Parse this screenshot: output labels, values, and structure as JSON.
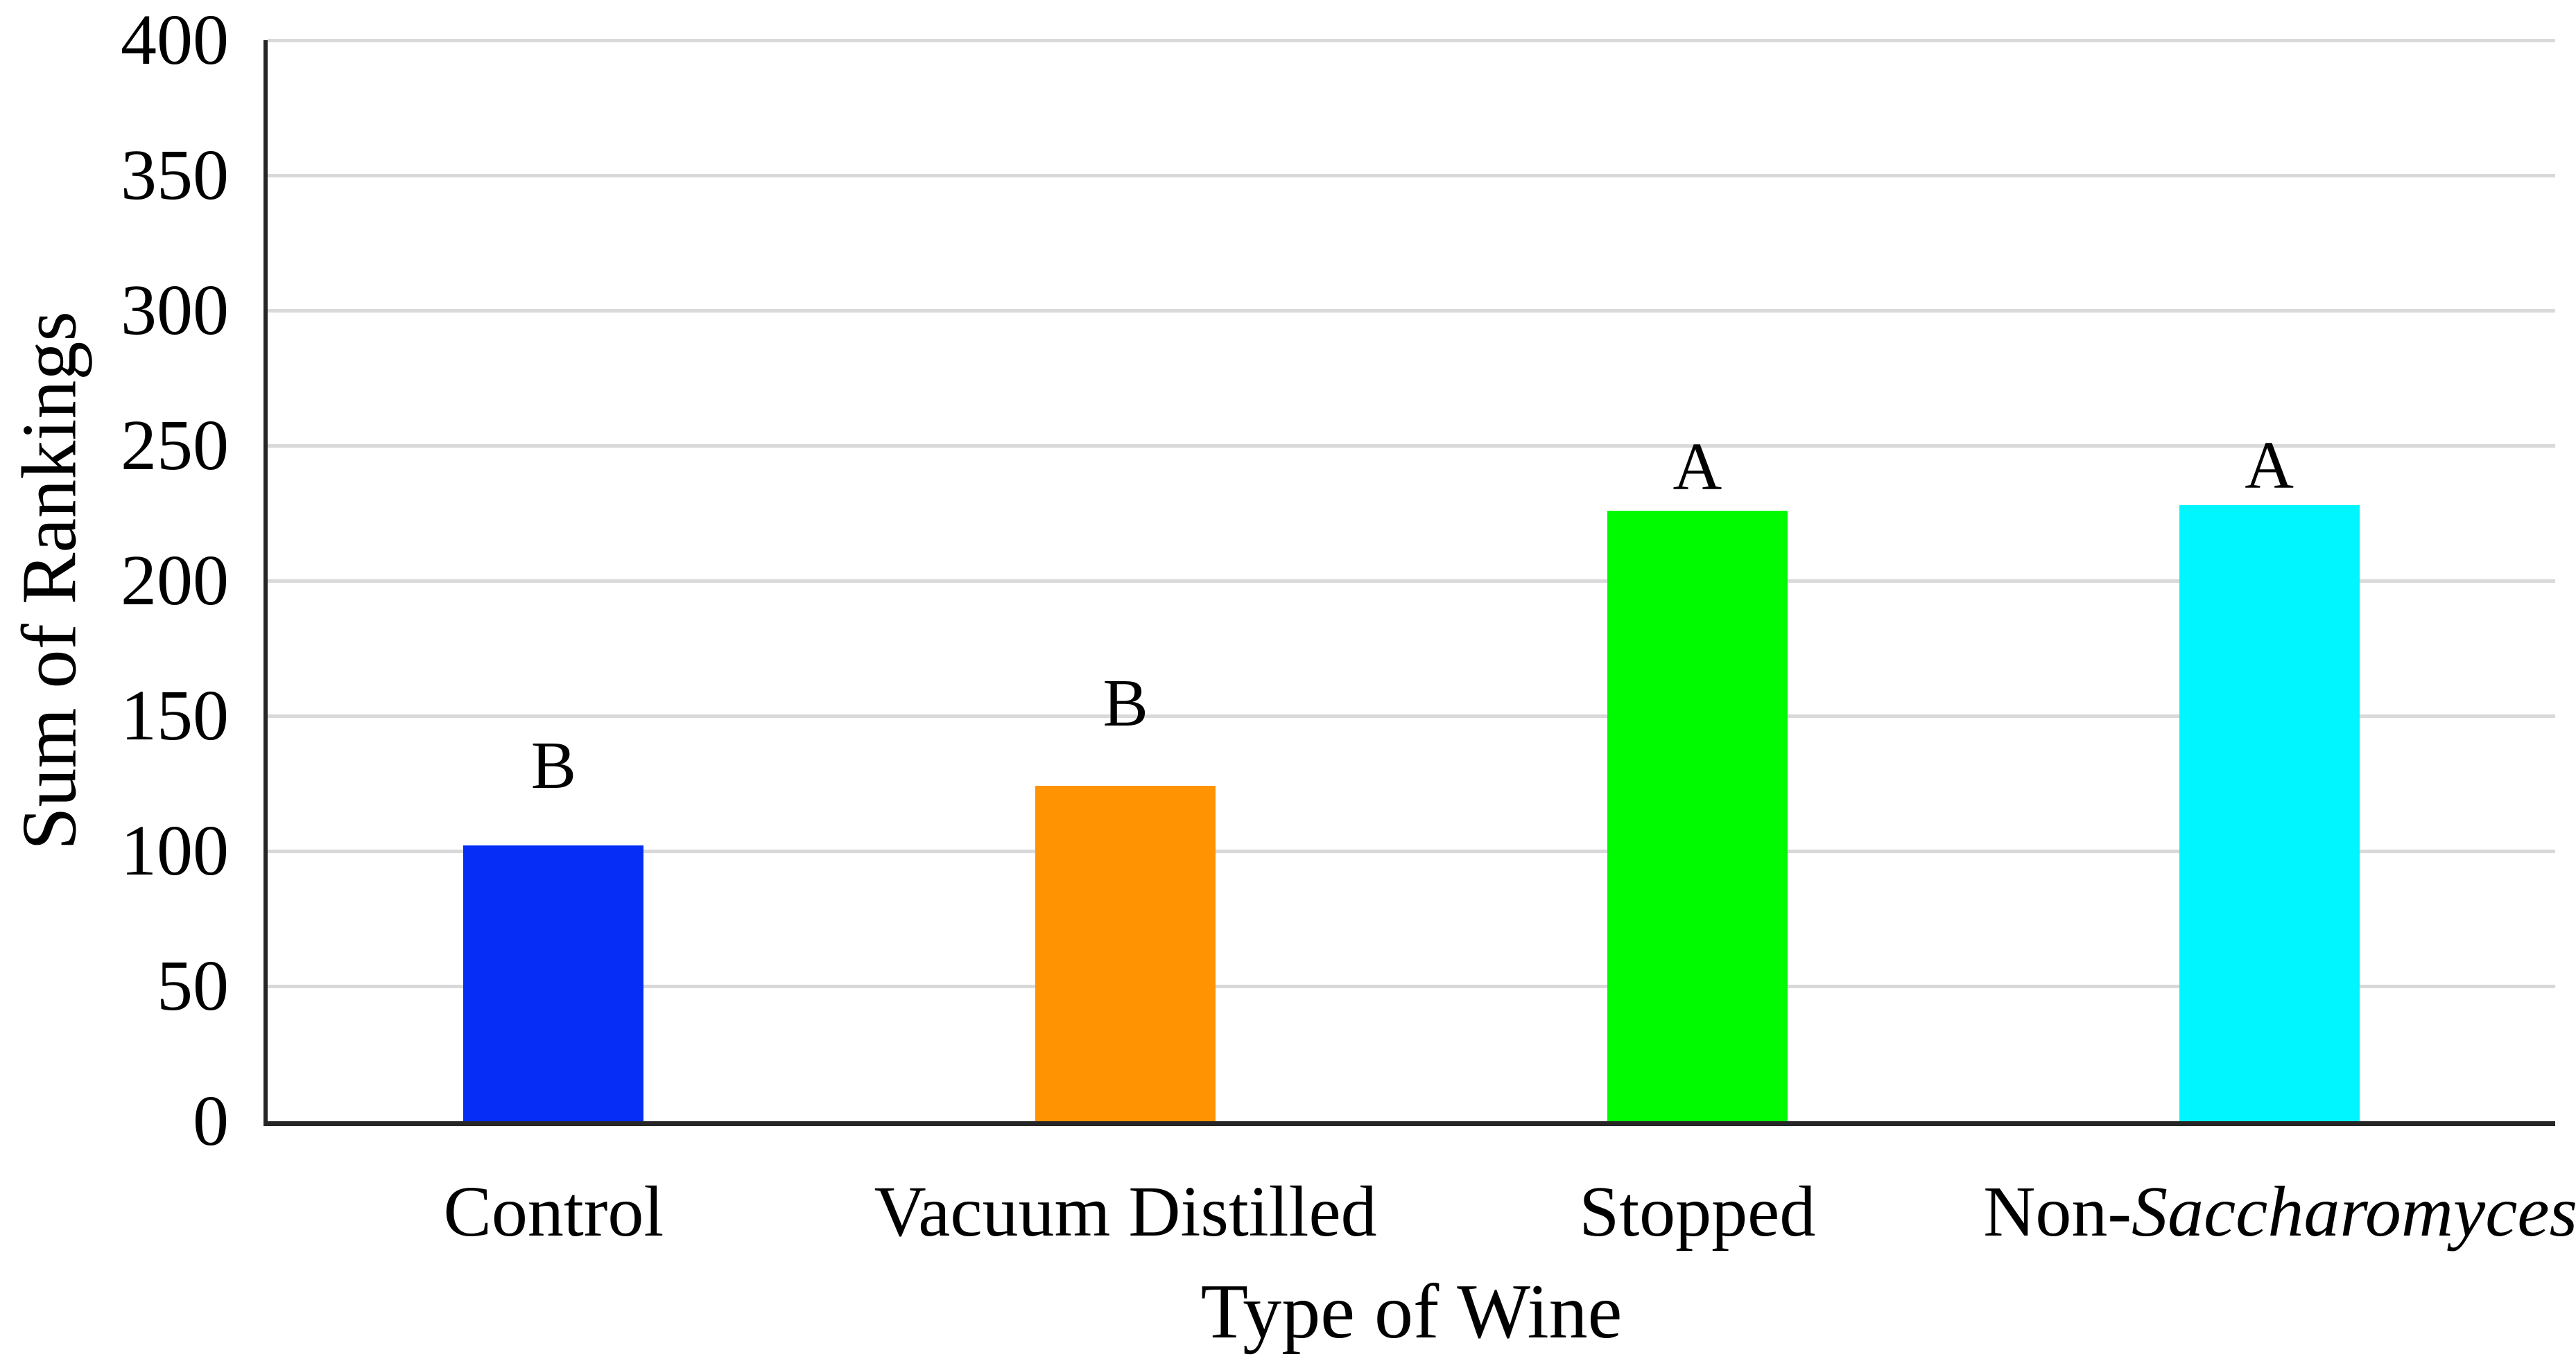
{
  "figure": {
    "background": "#ffffff",
    "text_color": "#000000"
  },
  "chart_data": {
    "type": "bar",
    "title": "",
    "xlabel": "Type of Wine",
    "ylabel": "Sum of Rankings",
    "categories": [
      {
        "label": "Control",
        "label_prefix": "Control",
        "label_italic": "",
        "value": 102,
        "color": "#052df5",
        "significance": "B"
      },
      {
        "label": "Vacuum Distilled",
        "label_prefix": "Vacuum Distilled",
        "label_italic": "",
        "value": 124,
        "color": "#ff9301",
        "significance": "B"
      },
      {
        "label": "Stopped",
        "label_prefix": "Stopped",
        "label_italic": "",
        "value": 226,
        "color": "#00fa00",
        "significance": "A"
      },
      {
        "label": "Non-Saccharomyces",
        "label_prefix": "Non-",
        "label_italic": "Saccharomyces",
        "value": 228,
        "color": "#00f6ff",
        "significance": "A"
      }
    ],
    "ylim": [
      0,
      400
    ],
    "yticks": [
      400,
      350,
      300,
      250,
      200,
      150,
      100,
      50,
      0
    ],
    "ytick_step": 50,
    "grid": true,
    "gridline_color": "#d9d9d9",
    "axis_color": "#262626",
    "legend_position": "none",
    "sig_letter_gaps_px": [
      66,
      70,
      14,
      8
    ]
  }
}
